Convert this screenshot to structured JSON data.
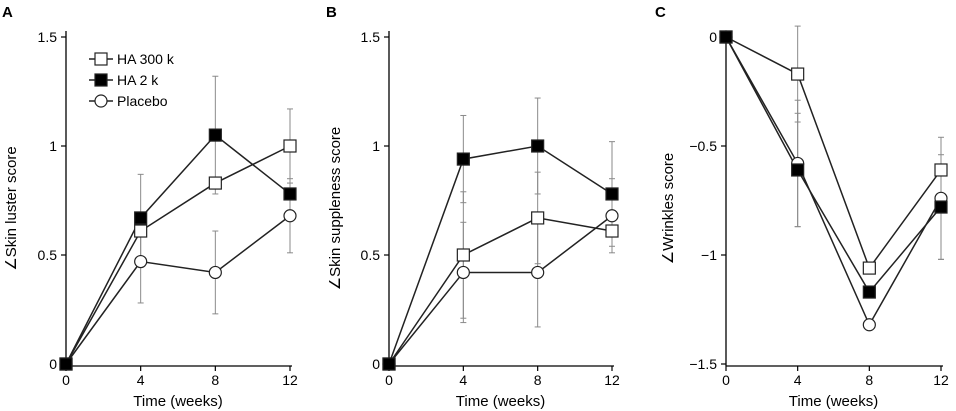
{
  "chart_data": [
    {
      "panel": "A",
      "type": "line",
      "title": "",
      "xlabel": "Time (weeks)",
      "ylabel": "∠Skin luster score",
      "x": [
        0,
        4,
        8,
        12
      ],
      "xticks": [
        "0",
        "4",
        "8",
        "12"
      ],
      "xlim": [
        0,
        12
      ],
      "ylim": [
        0,
        1.5
      ],
      "yticks": [
        "0",
        "0.5",
        "1",
        "1.5"
      ],
      "yticks_values": [
        0,
        0.5,
        1,
        1.5
      ],
      "legend": [
        "HA 300 k",
        "HA 2 k",
        "Placebo"
      ],
      "series": [
        {
          "name": "HA 300 k",
          "marker": "open-square",
          "values": [
            0,
            0.61,
            0.83,
            1.0
          ],
          "error": [
            0,
            0,
            0,
            0.17
          ]
        },
        {
          "name": "HA 2 k",
          "marker": "filled-square",
          "values": [
            0,
            0.67,
            1.05,
            0.78
          ],
          "error": [
            0,
            0.2,
            0.27,
            0
          ]
        },
        {
          "name": "Placebo",
          "marker": "open-circle",
          "values": [
            0,
            0.47,
            0.42,
            0.68
          ],
          "error": [
            0,
            0.19,
            0.19,
            0.17
          ]
        }
      ]
    },
    {
      "panel": "B",
      "type": "line",
      "title": "",
      "xlabel": "Time (weeks)",
      "ylabel": "∠Skin suppleness score",
      "x": [
        0,
        4,
        8,
        12
      ],
      "xticks": [
        "0",
        "4",
        "8",
        "12"
      ],
      "xlim": [
        0,
        12
      ],
      "ylim": [
        0,
        1.5
      ],
      "yticks": [
        "0",
        "0.5",
        "1",
        "1.5"
      ],
      "yticks_values": [
        0,
        0.5,
        1,
        1.5
      ],
      "legend": [],
      "series": [
        {
          "name": "HA 300 k",
          "marker": "open-square",
          "values": [
            0,
            0.5,
            0.67,
            0.61
          ],
          "error": [
            0,
            0.29,
            0.21,
            0
          ]
        },
        {
          "name": "HA 2 k",
          "marker": "filled-square",
          "values": [
            0,
            0.94,
            1.0,
            0.78
          ],
          "error": [
            0,
            0.2,
            0.22,
            0.24
          ]
        },
        {
          "name": "Placebo",
          "marker": "open-circle",
          "values": [
            0,
            0.42,
            0.42,
            0.68
          ],
          "error": [
            0,
            0.23,
            0.25,
            0.17
          ]
        }
      ]
    },
    {
      "panel": "C",
      "type": "line",
      "title": "",
      "xlabel": "Time (weeks)",
      "ylabel": "∠Wrinkles score",
      "x": [
        0,
        4,
        8,
        12
      ],
      "xticks": [
        "0",
        "4",
        "8",
        "12"
      ],
      "xlim": [
        0,
        12
      ],
      "ylim": [
        -1.5,
        0
      ],
      "yticks": [
        "0",
        "−0.5",
        "−1",
        "−1.5"
      ],
      "yticks_values": [
        0,
        -0.5,
        -1,
        -1.5
      ],
      "legend": [],
      "series": [
        {
          "name": "HA 300 k",
          "marker": "open-square",
          "values": [
            0,
            -0.17,
            -1.06,
            -0.61
          ],
          "error": [
            0,
            0.22,
            0,
            0
          ]
        },
        {
          "name": "HA 2 k",
          "marker": "filled-square",
          "values": [
            0,
            -0.61,
            -1.17,
            -0.78
          ],
          "error": [
            0,
            0.26,
            0,
            0.24
          ]
        },
        {
          "name": "Placebo",
          "marker": "open-circle",
          "values": [
            0,
            -0.58,
            -1.32,
            -0.74
          ],
          "error": [
            0,
            0.29,
            0,
            0.28
          ]
        }
      ]
    }
  ]
}
